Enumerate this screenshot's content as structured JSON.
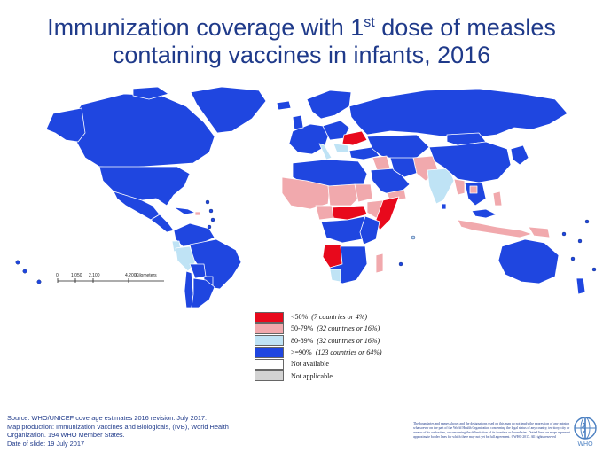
{
  "title": {
    "line1_prefix": "Immunization coverage with 1",
    "line1_sup": "st",
    "line1_suffix": " dose of measles",
    "line2": "containing vaccines in infants, 2016"
  },
  "legend": [
    {
      "label": "<50%",
      "note": "(7 countries or 4%)",
      "color": "#e8091c"
    },
    {
      "label": "50-79%",
      "note": "(32 countries or 16%)",
      "color": "#f1a9ad"
    },
    {
      "label": "80-89%",
      "note": "(32 countries or 16%)",
      "color": "#bfe3f5"
    },
    {
      "label": ">=90%",
      "note": "(123 countries or 64%)",
      "color": "#1f46e0"
    },
    {
      "label": "Not available",
      "note": "",
      "color": "#ffffff"
    },
    {
      "label": "Not applicable",
      "note": "",
      "color": "#d3d3d3"
    }
  ],
  "scale": {
    "ticks": [
      "0",
      "1,050",
      "2,100",
      "4,200"
    ],
    "unit": "Kilometers"
  },
  "source": {
    "line1": "Source: WHO/UNICEF  coverage estimates 2016 revision. July 2017.",
    "line2": "Map production: Immunization  Vaccines and Biologicals, (IVB), World Health",
    "line3": "Organization. 194 WHO Member States.",
    "line4": "Date of slide: 19 July 2017"
  },
  "disclaimer": "The boundaries and names shown and the designations used on this map do not imply the expression of any opinion whatsoever on the part of the World Health Organization concerning the legal status of any country, territory, city or area or of its authorities, or concerning the delimitation of its frontiers or boundaries. Dotted lines on maps represent approximate border lines for which there may not yet be full agreement. ©WHO 2017. All rights reserved",
  "logo_text": "WHO",
  "colors": {
    "title": "#1f3a8a",
    "ge90": "#1f46e0",
    "c80_89": "#bfe3f5",
    "c50_79": "#f1a9ad",
    "lt50": "#e8091c",
    "not_applicable": "#d3d3d3",
    "borders": "#ffffff"
  }
}
